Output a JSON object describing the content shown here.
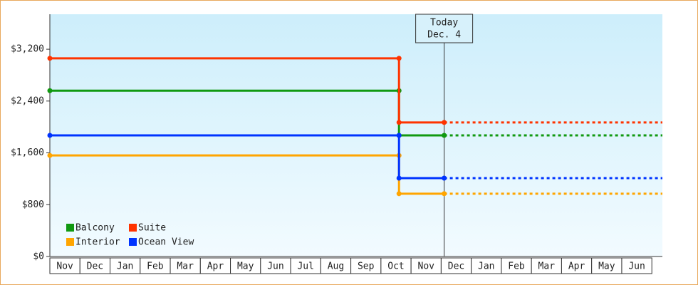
{
  "chart_data": {
    "type": "line",
    "categories": [
      "Nov",
      "Dec",
      "Jan",
      "Feb",
      "Mar",
      "Apr",
      "May",
      "Jun",
      "Jul",
      "Aug",
      "Sep",
      "Oct",
      "Nov",
      "Dec",
      "Jan",
      "Feb",
      "Mar",
      "Apr",
      "May",
      "Jun"
    ],
    "x": [
      0,
      11.6,
      11.6,
      13.1,
      20.35
    ],
    "xlim": [
      0,
      20.35
    ],
    "series": [
      {
        "name": "Balcony",
        "color": "#119911",
        "values": [
          2560,
          2560,
          1870,
          1870,
          1870
        ]
      },
      {
        "name": "Suite",
        "color": "#ff3300",
        "values": [
          3060,
          3060,
          2070,
          2070,
          2070
        ]
      },
      {
        "name": "Interior",
        "color": "#ffa500",
        "values": [
          1560,
          1560,
          970,
          970,
          970
        ]
      },
      {
        "name": "Ocean View",
        "color": "#0033ff",
        "values": [
          1870,
          1870,
          1210,
          1210,
          1210
        ]
      }
    ],
    "ylim": [
      0,
      3740
    ],
    "yticks": [
      {
        "value": 0,
        "label": "$0"
      },
      {
        "value": 800,
        "label": "$800"
      },
      {
        "value": 1600,
        "label": "$1,600"
      },
      {
        "value": 2400,
        "label": "$2,400"
      },
      {
        "value": 3200,
        "label": "$3,200"
      }
    ],
    "today": {
      "x": 13.1,
      "label": [
        "Today",
        "Dec. 4"
      ]
    },
    "legend": "bottom-left"
  }
}
